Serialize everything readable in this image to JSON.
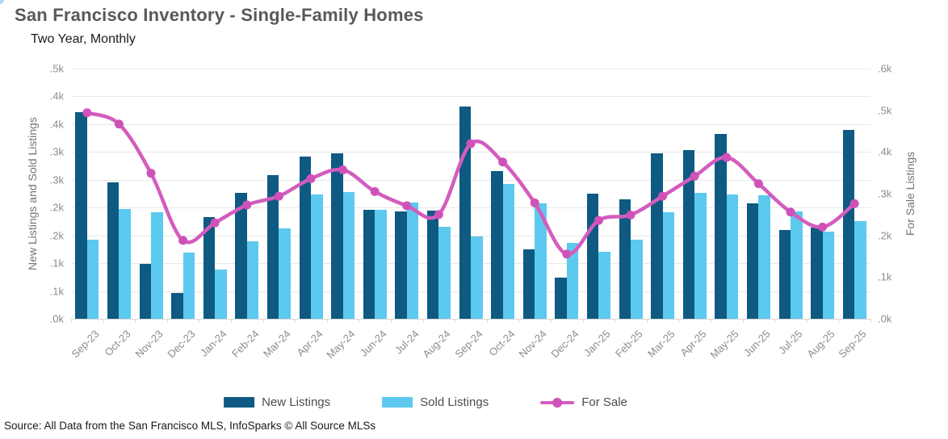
{
  "title": "San Francisco Inventory - Single-Family Homes",
  "subtitle": "Two Year, Monthly",
  "source": "Source: All Data from the San Francisco MLS, InfoSparks © All Source MLSs",
  "colors": {
    "new_listings": "#0e5a82",
    "sold_listings": "#5cc9ef",
    "for_sale": "#d45cbe",
    "for_sale_marker": "#cf52b8",
    "grid": "#e8e8e8",
    "axis_text": "#8c8c8c",
    "title_text": "#595959"
  },
  "chart_data": {
    "type": "bar",
    "subtype": "grouped bars with overlaid smoothed line",
    "categories": [
      "Sep-23",
      "Oct-23",
      "Nov-23",
      "Dec-23",
      "Jan-24",
      "Feb-24",
      "Mar-24",
      "Apr-24",
      "May-24",
      "Jun-24",
      "Jul-24",
      "Aug-24",
      "Sep-24",
      "Oct-24",
      "Nov-24",
      "Dec-24",
      "Jan-25",
      "Feb-25",
      "Mar-25",
      "Apr-25",
      "May-25",
      "Jun-25",
      "Jul-25",
      "Aug-25",
      "Sep-25"
    ],
    "series": [
      {
        "name": "New Listings",
        "type": "bar",
        "axis": "left",
        "values": [
          372,
          245,
          99,
          46,
          183,
          226,
          259,
          292,
          298,
          196,
          193,
          195,
          382,
          266,
          125,
          74,
          225,
          215,
          297,
          303,
          333,
          207,
          159,
          164,
          340
        ]
      },
      {
        "name": "Sold Listings",
        "type": "bar",
        "axis": "left",
        "values": [
          143,
          198,
          192,
          119,
          88,
          139,
          163,
          224,
          228,
          196,
          209,
          166,
          148,
          243,
          207,
          137,
          120,
          142,
          192,
          227,
          223,
          222,
          193,
          157,
          176
        ]
      },
      {
        "name": "For Sale",
        "type": "line",
        "axis": "right",
        "values": [
          494,
          467,
          349,
          188,
          230,
          273,
          294,
          336,
          357,
          305,
          271,
          250,
          420,
          376,
          278,
          155,
          236,
          249,
          294,
          342,
          387,
          324,
          256,
          220,
          276
        ]
      }
    ],
    "left_axis": {
      "title": "New Listings and Sold Listings",
      "min": 0,
      "max": 450,
      "tick_step": 50,
      "tick_labels_bottom_up": [
        ".0k",
        ".1k",
        ".1k",
        ".2k",
        ".2k",
        ".3k",
        ".3k",
        ".4k",
        ".4k",
        ".5k"
      ]
    },
    "right_axis": {
      "title": "For Sale Listings",
      "min": 0,
      "max": 600,
      "tick_step": 100,
      "tick_labels_bottom_up": [
        ".0k",
        ".1k",
        ".2k",
        ".3k",
        ".4k",
        ".5k",
        ".6k"
      ]
    },
    "grid": "horizontal only",
    "legend_position": "bottom center"
  }
}
